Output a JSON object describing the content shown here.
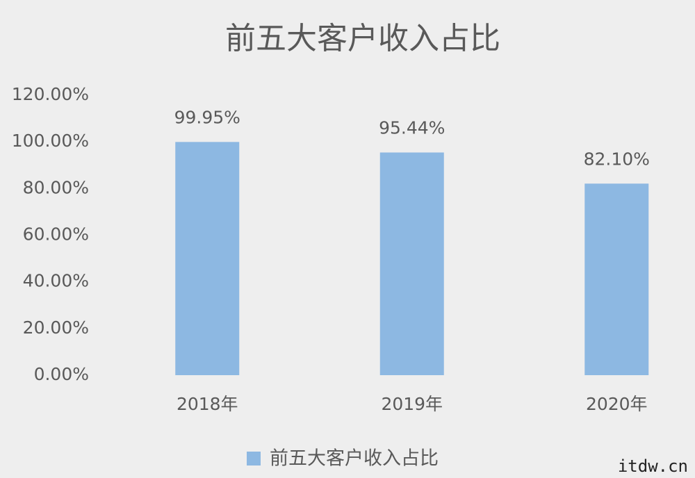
{
  "chart_data": {
    "type": "bar",
    "title": "前五大客户收入占比",
    "categories": [
      "2018年",
      "2019年",
      "2020年"
    ],
    "series": [
      {
        "name": "前五大客户收入占比",
        "color": "#8db8e2",
        "values": [
          99.95,
          95.44,
          82.1
        ],
        "value_labels": [
          "99.95%",
          "95.44%",
          "82.10%"
        ]
      }
    ],
    "ylim": [
      0,
      120
    ],
    "yticks": [
      {
        "value": 0,
        "label": "0.00%"
      },
      {
        "value": 20,
        "label": "20.00%"
      },
      {
        "value": 40,
        "label": "40.00%"
      },
      {
        "value": 60,
        "label": "60.00%"
      },
      {
        "value": 80,
        "label": "80.00%"
      },
      {
        "value": 100,
        "label": "100.00%"
      },
      {
        "value": 120,
        "label": "120.00%"
      }
    ],
    "grid": false,
    "legend": "bottom"
  },
  "watermark": "itdw.cn"
}
